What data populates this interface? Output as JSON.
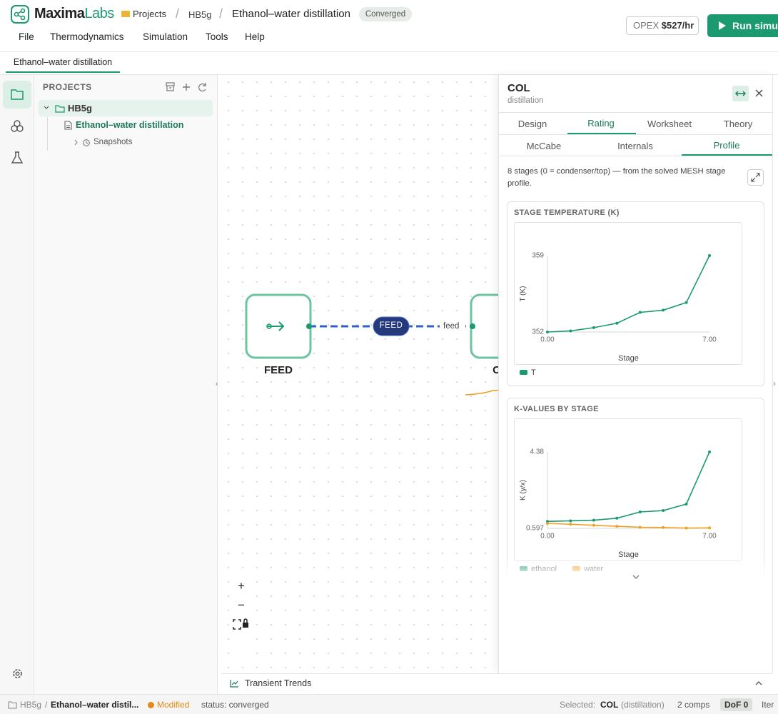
{
  "header": {
    "brand_a": "Maxima",
    "brand_b": "Labs",
    "breadcrumb": [
      "Projects",
      "HB5g",
      "Ethanol–water distillation"
    ],
    "separator": "/",
    "status_badge": "Converged",
    "menu": [
      "File",
      "Thermodynamics",
      "Simulation",
      "Tools",
      "Help"
    ],
    "opex_label": "OPEX",
    "opex_value": "$527/hr",
    "run_button": "Run simulation"
  },
  "tabs": [
    "Ethanol–water distillation"
  ],
  "sidebar": {
    "title": "PROJECTS",
    "tree": [
      {
        "label": "HB5g"
      },
      {
        "label": "Ethanol–water distillation"
      },
      {
        "label": "Snapshots"
      }
    ]
  },
  "canvas": {
    "nodes": [
      {
        "label": "FEED"
      },
      {
        "label": "COL"
      }
    ],
    "edge_pill": "FEED",
    "edge_label": "feed"
  },
  "panel": {
    "title": "COL",
    "subtitle": "distillation",
    "tabs": [
      "Design",
      "Rating",
      "Worksheet",
      "Theory"
    ],
    "subtabs": [
      "McCabe",
      "Internals",
      "Profile"
    ],
    "description": "8 stages (0 = condenser/top) — from the solved MESH stage profile.",
    "charts": [
      {
        "type": "line",
        "title": "STAGE TEMPERATURE (K)",
        "x_label": "Stage",
        "y_label": "T (K)",
        "x": [
          0,
          1,
          2,
          3,
          4,
          5,
          6,
          7
        ],
        "series": [
          {
            "name": "T",
            "color": "#1a9a6e",
            "values": [
              352.0,
              352.1,
              352.4,
              352.8,
              353.8,
              354.0,
              354.7,
              359.0
            ]
          }
        ],
        "xlim": [
          0,
          7
        ],
        "ylim": [
          352,
          359
        ],
        "xticks": [
          {
            "value": 0,
            "label": "0.00"
          },
          {
            "value": 7,
            "label": "7.00"
          }
        ],
        "yticks": [
          352,
          359
        ]
      },
      {
        "type": "line",
        "title": "K-VALUES BY STAGE",
        "x_label": "Stage",
        "y_label": "K (y/x)",
        "x": [
          0,
          1,
          2,
          3,
          4,
          5,
          6,
          7
        ],
        "series": [
          {
            "name": "ethanol",
            "color": "#1a9a6e",
            "values": [
              0.94,
              0.97,
              1.0,
              1.1,
              1.41,
              1.48,
              1.8,
              4.38
            ]
          },
          {
            "name": "water",
            "color": "#f0a020",
            "values": [
              0.84,
              0.8,
              0.75,
              0.7,
              0.65,
              0.64,
              0.61,
              0.62
            ]
          }
        ],
        "xlim": [
          0,
          7
        ],
        "ylim": [
          0.597,
          4.38
        ],
        "xticks": [
          {
            "value": 0,
            "label": "0.00"
          },
          {
            "value": 7,
            "label": "7.00"
          }
        ],
        "yticks": [
          0.597,
          4.38
        ]
      }
    ]
  },
  "bottom_panel": {
    "title": "Transient Trends"
  },
  "status_bar": {
    "project": "HB5g",
    "document": "Ethanol–water distil...",
    "modified": "Modified",
    "status": "status: converged",
    "selected_label": "Selected:",
    "selected_name": "COL",
    "selected_type": "(distillation)",
    "comps": "2 comps",
    "dof": "DoF 0",
    "iter": "Iter"
  }
}
